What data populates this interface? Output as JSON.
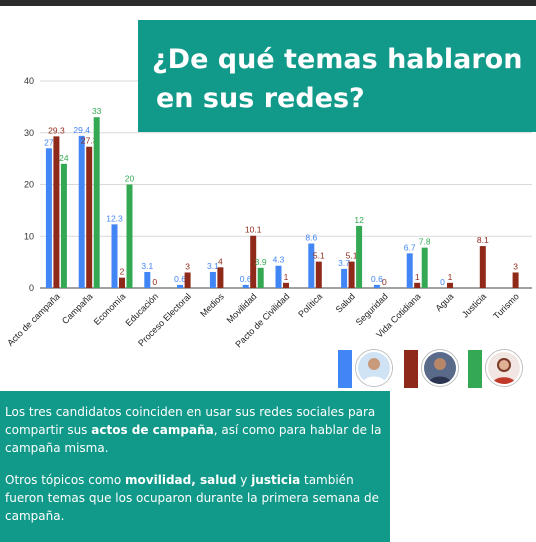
{
  "title": {
    "line1": "¿De qué temas hablaron",
    "line2": "en sus redes?"
  },
  "colors": {
    "blue": "#4285f4",
    "red": "#8f2a1a",
    "green": "#34a853",
    "teal": "#11998a"
  },
  "chart_data": {
    "type": "bar",
    "categories": [
      "Acto de campaña",
      "Campaña",
      "Economía",
      "Educación",
      "Proceso Electoral",
      "Medios",
      "Movilidad",
      "Pacto de Civilidad",
      "Política",
      "Salud",
      "Seguridad",
      "Vida Cotidiana",
      "Agua",
      "Justicia",
      "Turismo"
    ],
    "series": [
      {
        "color": "#4285f4",
        "values": [
          27,
          29.4,
          12.3,
          3.1,
          0.6,
          3.1,
          0.6,
          4.3,
          8.6,
          3.7,
          0.6,
          6.7,
          0,
          null,
          null
        ]
      },
      {
        "color": "#8f2a1a",
        "values": [
          29.3,
          27.3,
          2,
          0,
          3,
          4,
          10.1,
          1,
          5.1,
          5.1,
          0,
          1,
          1,
          8.1,
          3
        ]
      },
      {
        "color": "#34a853",
        "values": [
          24,
          33,
          20,
          null,
          null,
          null,
          3.9,
          null,
          null,
          12,
          null,
          7.8,
          null,
          null,
          null
        ]
      }
    ],
    "y_ticks": [
      0,
      10,
      20,
      30,
      40
    ],
    "ylim": [
      0,
      40
    ],
    "grid": true,
    "legend": "bottom-right (candidate photos)"
  },
  "legend": {
    "avatar3_caption": ""
  },
  "text": {
    "p1_a": "Los tres candidatos coinciden en usar sus redes sociales para compartir sus ",
    "p1_b": "actos de campaña",
    "p1_c": ", así como para hablar de la campaña misma.",
    "p2_a": "Otros tópicos como ",
    "p2_b": "movilidad, salud",
    "p2_c": " y ",
    "p2_d": "justicia",
    "p2_e": " también fueron temas que los ocuparon durante la primera semana de campaña."
  }
}
